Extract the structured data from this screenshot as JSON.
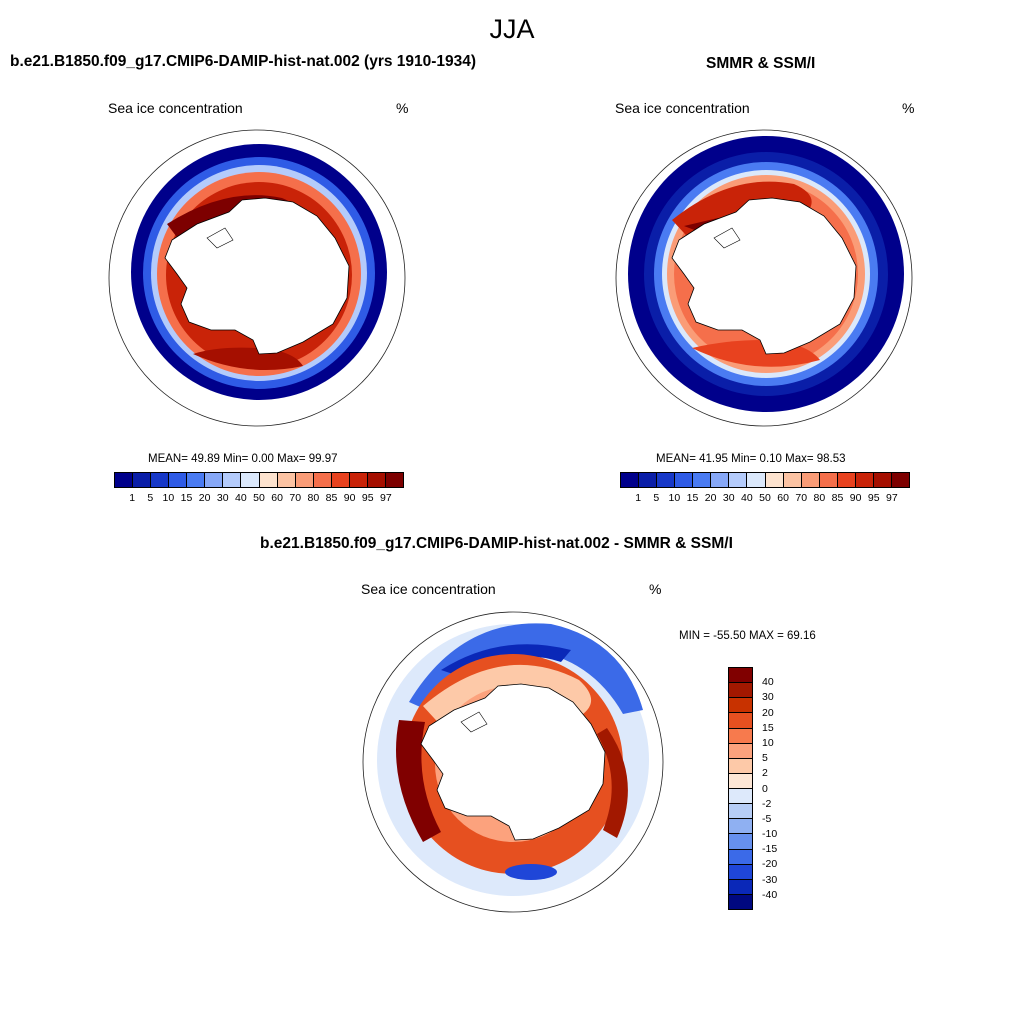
{
  "figure": {
    "season": "JJA",
    "variable_label": "Sea ice concentration",
    "unit": "%"
  },
  "panels": [
    {
      "title": "b.e21.B1850.f09_g17.CMIP6-DAMIP-hist-nat.002 (yrs 1910-1934)",
      "stats": "MEAN=  49.89  Min=   0.00  Max=  99.97",
      "levels": [
        "1",
        "5",
        "10",
        "15",
        "20",
        "30",
        "40",
        "50",
        "60",
        "70",
        "80",
        "85",
        "90",
        "95",
        "97"
      ]
    },
    {
      "title": "SMMR & SSM/I",
      "stats": "MEAN=  41.95  Min=   0.10  Max=  98.53",
      "levels": [
        "1",
        "5",
        "10",
        "15",
        "20",
        "30",
        "40",
        "50",
        "60",
        "70",
        "80",
        "85",
        "90",
        "95",
        "97"
      ]
    },
    {
      "title": "b.e21.B1850.f09_g17.CMIP6-DAMIP-hist-nat.002 - SMMR & SSM/I",
      "minmax": "MIN = -55.50 MAX =  69.16",
      "levels": [
        "40",
        "30",
        "20",
        "15",
        "10",
        "5",
        "2",
        "0",
        "-2",
        "-5",
        "-10",
        "-15",
        "-20",
        "-30",
        "-40"
      ]
    }
  ],
  "colors": {
    "abs_scale": [
      "#00008b",
      "#0a1ea8",
      "#1738c8",
      "#2f5be6",
      "#4a7bf2",
      "#87a8f7",
      "#b4cbfb",
      "#dbe8fb",
      "#fde3cf",
      "#fcc3a3",
      "#fa9c77",
      "#f56f4b",
      "#e8421f",
      "#c92308",
      "#a50f00",
      "#7d0000"
    ],
    "diff_scale": [
      "#800000",
      "#a21800",
      "#c83200",
      "#e65020",
      "#f77a4d",
      "#fca27d",
      "#fdc9a8",
      "#fde6d5",
      "#dde9fb",
      "#b6cdf6",
      "#8fb0f2",
      "#6690ee",
      "#3b6ae8",
      "#1f46d8",
      "#0a28b8",
      "#000880"
    ]
  }
}
